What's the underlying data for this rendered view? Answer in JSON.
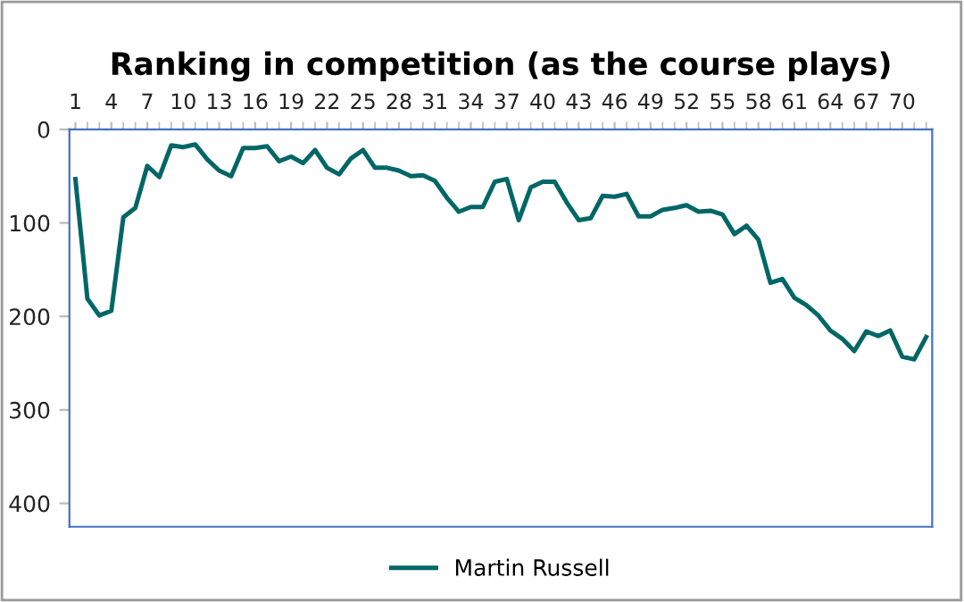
{
  "chart_data": {
    "type": "line",
    "title": "Ranking in competition (as the course plays)",
    "categories": [
      "1",
      null,
      null,
      "4",
      null,
      null,
      "7",
      null,
      null,
      "10",
      null,
      null,
      "13",
      null,
      null,
      "16",
      null,
      null,
      "19",
      null,
      null,
      "22",
      null,
      null,
      "25",
      null,
      null,
      "28",
      null,
      null,
      "31",
      null,
      null,
      "34",
      null,
      null,
      "37",
      null,
      null,
      "40",
      null,
      null,
      "43",
      null,
      null,
      "46",
      null,
      null,
      "49",
      null,
      null,
      "52",
      null,
      null,
      "55",
      null,
      null,
      "58",
      null,
      null,
      "61",
      null,
      null,
      "64",
      null,
      null,
      "67",
      null,
      null,
      "70",
      null,
      null
    ],
    "series": [
      {
        "name": "Martin Russell",
        "color": "#006666",
        "values": [
          53,
          181,
          199,
          194,
          94,
          84,
          39,
          51,
          17,
          19,
          16,
          32,
          44,
          50,
          20,
          20,
          18,
          34,
          29,
          36,
          22,
          41,
          48,
          31,
          22,
          41,
          41,
          44,
          50,
          49,
          55,
          73,
          88,
          83,
          83,
          56,
          53,
          97,
          62,
          56,
          56,
          78,
          97,
          95,
          71,
          72,
          69,
          93,
          93,
          86,
          84,
          81,
          88,
          87,
          91,
          112,
          103,
          118,
          164,
          160,
          180,
          188,
          199,
          215,
          224,
          237,
          216,
          221,
          215,
          243,
          246,
          222
        ]
      }
    ],
    "ylim": [
      425,
      0
    ],
    "yticks": [
      0,
      100,
      200,
      300,
      400
    ],
    "grid": false,
    "legend": "bottom",
    "marker": "none",
    "line_style": "solid"
  }
}
